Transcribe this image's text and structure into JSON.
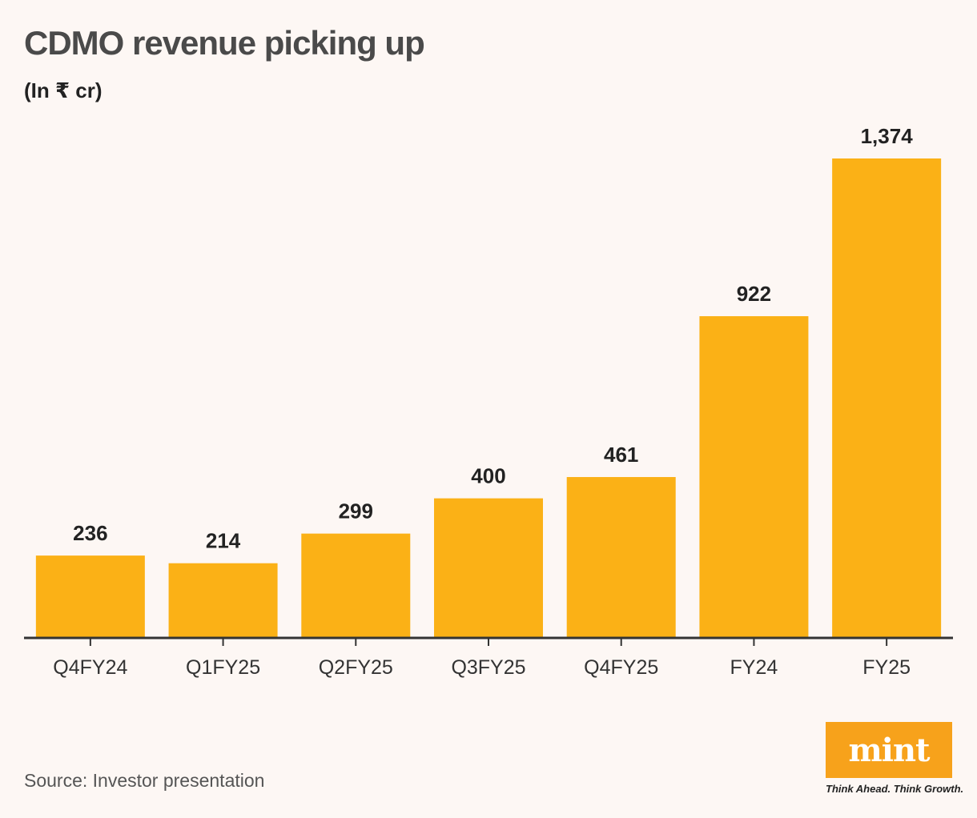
{
  "header": {
    "title": "CDMO revenue picking up",
    "subtitle": "(In ₹ cr)"
  },
  "chart_data": {
    "type": "bar",
    "title": "CDMO revenue picking up",
    "subtitle": "(In ₹ cr)",
    "categories": [
      "Q4FY24",
      "Q1FY25",
      "Q2FY25",
      "Q3FY25",
      "Q4FY25",
      "FY24",
      "FY25"
    ],
    "values": [
      236,
      214,
      299,
      400,
      461,
      922,
      1374
    ],
    "value_labels": [
      "236",
      "214",
      "299",
      "400",
      "461",
      "922",
      "1,374"
    ],
    "xlabel": "",
    "ylabel": "",
    "ylim": [
      0,
      1374
    ],
    "grid": false,
    "bar_color": "#fbb116"
  },
  "footer": {
    "source": "Source: Investor presentation",
    "logo": "mint",
    "tagline": "Think Ahead. Think Growth."
  },
  "colors": {
    "background": "#fdf7f4",
    "bar": "#fbb116",
    "logo": "#f7a21b",
    "axis": "#333333"
  }
}
